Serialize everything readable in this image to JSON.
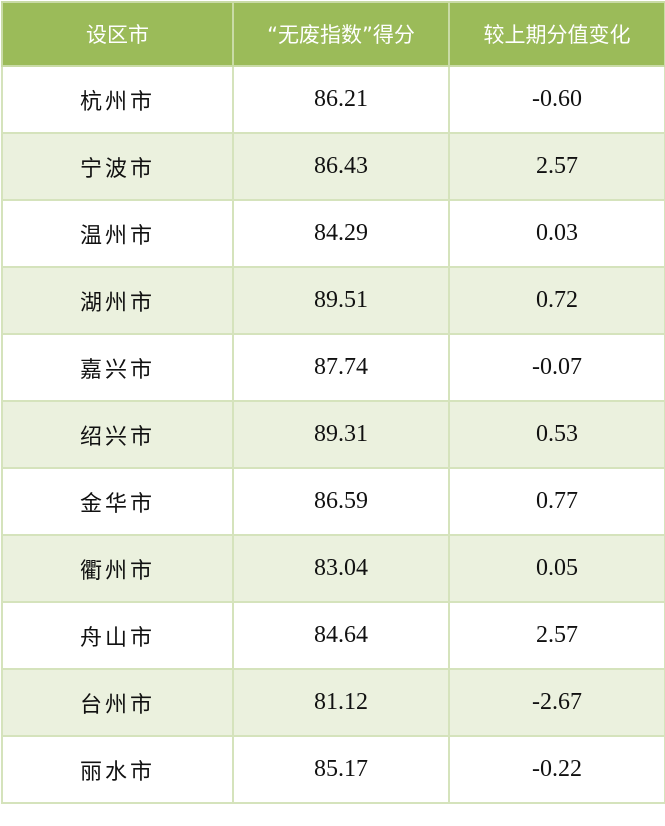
{
  "table": {
    "headers": [
      "设区市",
      "“无废指数”得分",
      "较上期分值变化"
    ],
    "rows": [
      [
        "杭州市",
        "86.21",
        "-0.60"
      ],
      [
        "宁波市",
        "86.43",
        "2.57"
      ],
      [
        "温州市",
        "84.29",
        "0.03"
      ],
      [
        "湖州市",
        "89.51",
        "0.72"
      ],
      [
        "嘉兴市",
        "87.74",
        "-0.07"
      ],
      [
        "绍兴市",
        "89.31",
        "0.53"
      ],
      [
        "金华市",
        "86.59",
        "0.77"
      ],
      [
        "衢州市",
        "83.04",
        "0.05"
      ],
      [
        "舟山市",
        "84.64",
        "2.57"
      ],
      [
        "台州市",
        "81.12",
        "-2.67"
      ],
      [
        "丽水市",
        "85.17",
        "-0.22"
      ]
    ],
    "colors": {
      "header_bg": "#9bbb59",
      "alt_row_bg": "#ebf1de",
      "border": "#d5e3bc"
    }
  }
}
